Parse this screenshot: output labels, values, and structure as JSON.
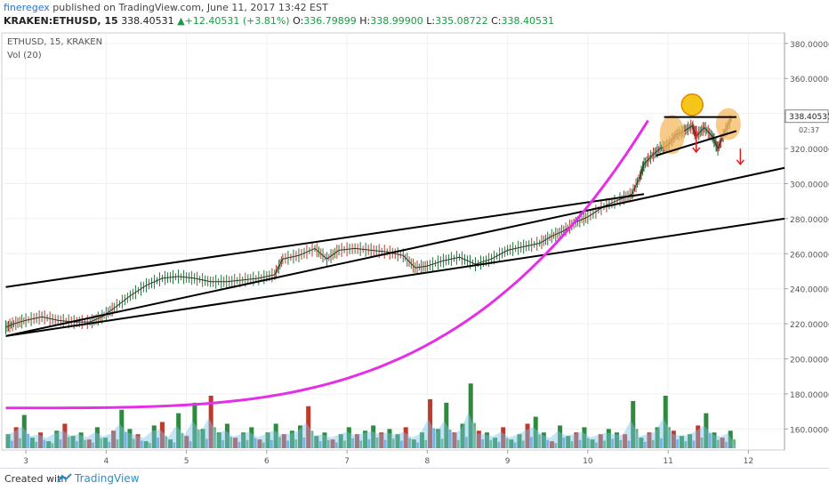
{
  "header": {
    "author": "fineregex",
    "published_text": "published on TradingView.com, June 11, 2017 13:42 EST",
    "symbol": "KRAKEN:ETHUSD, 15",
    "last": "338.40531",
    "change_arrow": "▲",
    "change": "+12.40531 (+3.81%)",
    "o_label": "O:",
    "o": "336.79899",
    "h_label": "H:",
    "h": "338.99900",
    "l_label": "L:",
    "l": "335.08722",
    "c_label": "C:",
    "c": "338.40531"
  },
  "legend": {
    "series": "ETHUSD, 15, KRAKEN",
    "volume": "Vol (20)"
  },
  "footer": {
    "created_with": "Created with",
    "brand": "TradingView",
    "logo_icon": "tradingview-logo-icon"
  },
  "colors": {
    "up": "#26a69a",
    "vol_up": "#2e8b3d",
    "vol_down": "#c0392b",
    "channel": "#000000",
    "curve": "#e52ee8",
    "shoulder_fill": "#f4b860",
    "head_fill": "#f5c518",
    "target_arrow": "#e02020",
    "volume_ma": "#7fc4ec"
  },
  "chart_data": {
    "type": "line",
    "title": "ETHUSD, 15, KRAKEN",
    "x_axis": {
      "ticks": [
        "3",
        "4",
        "5",
        "6",
        "7",
        "8",
        "9",
        "10",
        "11",
        "12"
      ],
      "domain": [
        2.7,
        12.45
      ]
    },
    "y_axis": {
      "ticks": [
        "160.00000",
        "180.00000",
        "200.00000",
        "220.00000",
        "240.00000",
        "260.00000",
        "280.00000",
        "300.00000",
        "320.00000",
        "340.00000",
        "360.00000",
        "380.00000"
      ],
      "range": [
        148,
        386
      ]
    },
    "last_price_label": "338.40531",
    "countdown_label": "02:37",
    "price_path": [
      [
        2.75,
        218
      ],
      [
        2.85,
        220
      ],
      [
        3.0,
        222
      ],
      [
        3.2,
        224
      ],
      [
        3.4,
        222
      ],
      [
        3.6,
        221
      ],
      [
        3.8,
        221
      ],
      [
        3.95,
        224
      ],
      [
        4.1,
        229
      ],
      [
        4.3,
        236
      ],
      [
        4.5,
        242
      ],
      [
        4.7,
        246
      ],
      [
        4.9,
        247
      ],
      [
        5.1,
        246
      ],
      [
        5.3,
        244
      ],
      [
        5.5,
        244
      ],
      [
        5.7,
        245
      ],
      [
        5.9,
        246
      ],
      [
        6.1,
        248
      ],
      [
        6.2,
        257
      ],
      [
        6.4,
        259
      ],
      [
        6.6,
        263
      ],
      [
        6.75,
        257
      ],
      [
        6.9,
        262
      ],
      [
        7.1,
        263
      ],
      [
        7.3,
        262
      ],
      [
        7.5,
        261
      ],
      [
        7.7,
        259
      ],
      [
        7.85,
        252
      ],
      [
        8.0,
        253
      ],
      [
        8.2,
        256
      ],
      [
        8.4,
        258
      ],
      [
        8.6,
        254
      ],
      [
        8.8,
        257
      ],
      [
        9.0,
        262
      ],
      [
        9.2,
        264
      ],
      [
        9.4,
        266
      ],
      [
        9.55,
        270
      ],
      [
        9.7,
        273
      ],
      [
        9.85,
        278
      ],
      [
        10.0,
        281
      ],
      [
        10.2,
        287
      ],
      [
        10.4,
        291
      ],
      [
        10.55,
        294
      ],
      [
        10.65,
        304
      ],
      [
        10.7,
        311
      ],
      [
        10.8,
        316
      ],
      [
        10.9,
        320
      ],
      [
        11.0,
        322
      ],
      [
        11.1,
        328
      ],
      [
        11.2,
        330
      ],
      [
        11.3,
        333
      ],
      [
        11.35,
        327
      ],
      [
        11.45,
        332
      ],
      [
        11.55,
        327
      ],
      [
        11.62,
        320
      ],
      [
        11.7,
        329
      ],
      [
        11.8,
        338.4
      ]
    ],
    "volume_bars": {
      "axis_max_units": 60,
      "values": [
        8,
        12,
        19,
        6,
        9,
        4,
        10,
        14,
        7,
        9,
        5,
        12,
        6,
        10,
        22,
        11,
        8,
        4,
        13,
        15,
        5,
        20,
        7,
        26,
        11,
        30,
        9,
        14,
        6,
        9,
        12,
        5,
        9,
        14,
        8,
        10,
        13,
        24,
        7,
        9,
        5,
        8,
        12,
        8,
        10,
        13,
        9,
        11,
        8,
        12,
        5,
        9,
        28,
        11,
        26,
        9,
        14,
        37,
        10,
        9,
        6,
        12,
        5,
        8,
        14,
        18,
        9,
        4,
        13,
        7,
        9,
        12,
        5,
        8,
        11,
        9,
        8,
        27,
        6,
        9,
        12,
        30,
        10,
        7,
        8,
        13,
        20,
        9,
        6,
        10
      ],
      "direction": "mixed"
    },
    "drawings": {
      "upper_channel": [
        [
          2.75,
          241
        ],
        [
          10.7,
          294
        ]
      ],
      "lower_channel": [
        [
          2.75,
          213
        ],
        [
          12.45,
          309
        ]
      ],
      "lower_channel_upper_parallel": [
        [
          2.75,
          213
        ],
        [
          12.45,
          309
        ]
      ],
      "second_lower_line": [
        [
          2.75,
          213
        ],
        [
          12.45,
          280
        ]
      ],
      "parabolic_curve": "exponential from (2.75,172) to (10.75,336)",
      "neckline_top": [
        [
          10.95,
          338
        ],
        [
          11.85,
          338
        ]
      ],
      "neckline_bottom": [
        [
          10.85,
          316
        ],
        [
          11.85,
          330
        ]
      ],
      "head": [
        11.3,
        345
      ],
      "shoulders": [
        [
          11.05,
          328
        ],
        [
          11.75,
          334
        ]
      ],
      "target_arrows": [
        [
          11.35,
          333,
          318
        ],
        [
          11.9,
          320,
          311
        ]
      ]
    }
  }
}
